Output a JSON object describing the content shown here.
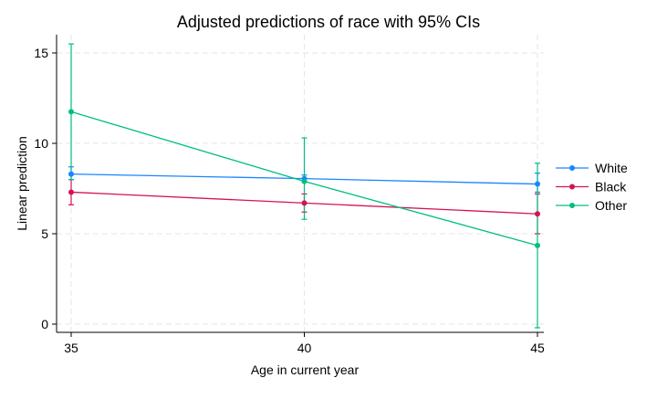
{
  "chart_data": {
    "type": "line",
    "title": "Adjusted predictions of race with 95% CIs",
    "xlabel": "Age in current year",
    "ylabel": "Linear prediction",
    "x": [
      35,
      40,
      45
    ],
    "xlim": [
      35,
      45
    ],
    "ylim": [
      0,
      15
    ],
    "xticks": [
      "35",
      "40",
      "45"
    ],
    "yticks": [
      "0",
      "5",
      "10",
      "15"
    ],
    "grid": true,
    "legend_position": "right",
    "series": [
      {
        "name": "White",
        "color": "#1a85ff",
        "values": [
          8.3,
          8.05,
          7.75
        ],
        "ci_low": [
          8.0,
          7.9,
          7.3
        ],
        "ci_high": [
          8.7,
          8.25,
          8.35
        ]
      },
      {
        "name": "Black",
        "color": "#d41159",
        "values": [
          7.3,
          6.7,
          6.1
        ],
        "ci_low": [
          6.6,
          6.2,
          5.0
        ],
        "ci_high": [
          8.0,
          7.2,
          7.2
        ]
      },
      {
        "name": "Other",
        "color": "#00bf7f",
        "values": [
          11.75,
          7.9,
          4.35
        ],
        "ci_low": [
          8.0,
          5.8,
          -0.2
        ],
        "ci_high": [
          15.5,
          10.3,
          8.9
        ]
      }
    ]
  }
}
